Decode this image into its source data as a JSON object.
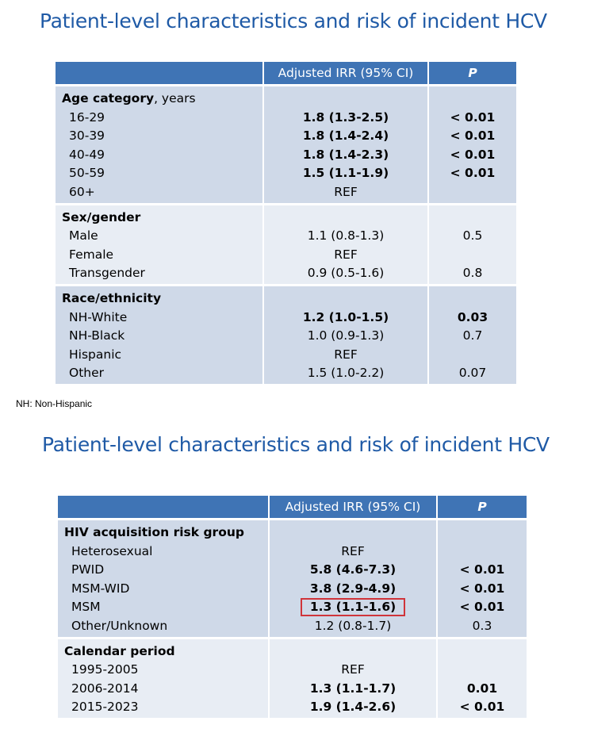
{
  "slide1": {
    "title": "Patient-level characteristics and risk of incident HCV",
    "header": {
      "label": "",
      "irr": "Adjusted IRR (95% CI)",
      "p": "P"
    },
    "groups": [
      {
        "heading": "Age category",
        "heading_suffix": ", years",
        "rows": [
          {
            "label": "16-29",
            "irr": "1.8 (1.3-2.5)",
            "p": "< 0.01",
            "bold": true
          },
          {
            "label": "30-39",
            "irr": "1.8 (1.4-2.4)",
            "p": "< 0.01",
            "bold": true
          },
          {
            "label": "40-49",
            "irr": "1.8 (1.4-2.3)",
            "p": "< 0.01",
            "bold": true
          },
          {
            "label": "50-59",
            "irr": "1.5 (1.1-1.9)",
            "p": "< 0.01",
            "bold": true
          },
          {
            "label": "60+",
            "irr": "REF",
            "p": "",
            "bold": false
          }
        ]
      },
      {
        "heading": "Sex/gender",
        "heading_suffix": "",
        "rows": [
          {
            "label": "Male",
            "irr": "1.1 (0.8-1.3)",
            "p": "0.5",
            "bold": false
          },
          {
            "label": "Female",
            "irr": "REF",
            "p": "",
            "bold": false
          },
          {
            "label": "Transgender",
            "irr": "0.9 (0.5-1.6)",
            "p": "0.8",
            "bold": false
          }
        ]
      },
      {
        "heading": "Race/ethnicity",
        "heading_suffix": "",
        "rows": [
          {
            "label": "NH-White",
            "irr": "1.2 (1.0-1.5)",
            "p": "0.03",
            "bold": true
          },
          {
            "label": "NH-Black",
            "irr": "1.0 (0.9-1.3)",
            "p": "0.7",
            "bold": false
          },
          {
            "label": "Hispanic",
            "irr": "REF",
            "p": "",
            "bold": false
          },
          {
            "label": "Other",
            "irr": "1.5 (1.0-2.2)",
            "p": "0.07",
            "bold": false
          }
        ]
      }
    ],
    "footnote": "NH: Non-Hispanic"
  },
  "slide2": {
    "title": "Patient-level characteristics and risk of incident HCV",
    "header": {
      "label": "",
      "irr": "Adjusted IRR (95% CI)",
      "p": "P"
    },
    "groups": [
      {
        "heading": "HIV acquisition risk group",
        "heading_suffix": "",
        "rows": [
          {
            "label": "Heterosexual",
            "irr": "REF",
            "p": "",
            "bold": false
          },
          {
            "label": "PWID",
            "irr": "5.8 (4.6-7.3)",
            "p": "< 0.01",
            "bold": true
          },
          {
            "label": "MSM-WID",
            "irr": "3.8 (2.9-4.9)",
            "p": "< 0.01",
            "bold": true
          },
          {
            "label": "MSM",
            "irr": "1.3 (1.1-1.6)",
            "p": "< 0.01",
            "bold": true,
            "highlighted": true
          },
          {
            "label": "Other/Unknown",
            "irr": "1.2 (0.8-1.7)",
            "p": "0.3",
            "bold": false
          }
        ]
      },
      {
        "heading": "Calendar period",
        "heading_suffix": "",
        "rows": [
          {
            "label": "1995-2005",
            "irr": "REF",
            "p": "",
            "bold": false
          },
          {
            "label": "2006-2014",
            "irr": "1.3 (1.1-1.7)",
            "p": "0.01",
            "bold": true
          },
          {
            "label": "2015-2023",
            "irr": "1.9 (1.4-2.6)",
            "p": "< 0.01",
            "bold": true
          }
        ]
      }
    ]
  },
  "colors": {
    "title": "#1f5aa6",
    "header_bg": "#3f74b5",
    "row_dark": "#cfd9e8",
    "row_light": "#e8edf4",
    "highlight_border": "#d0343a"
  }
}
